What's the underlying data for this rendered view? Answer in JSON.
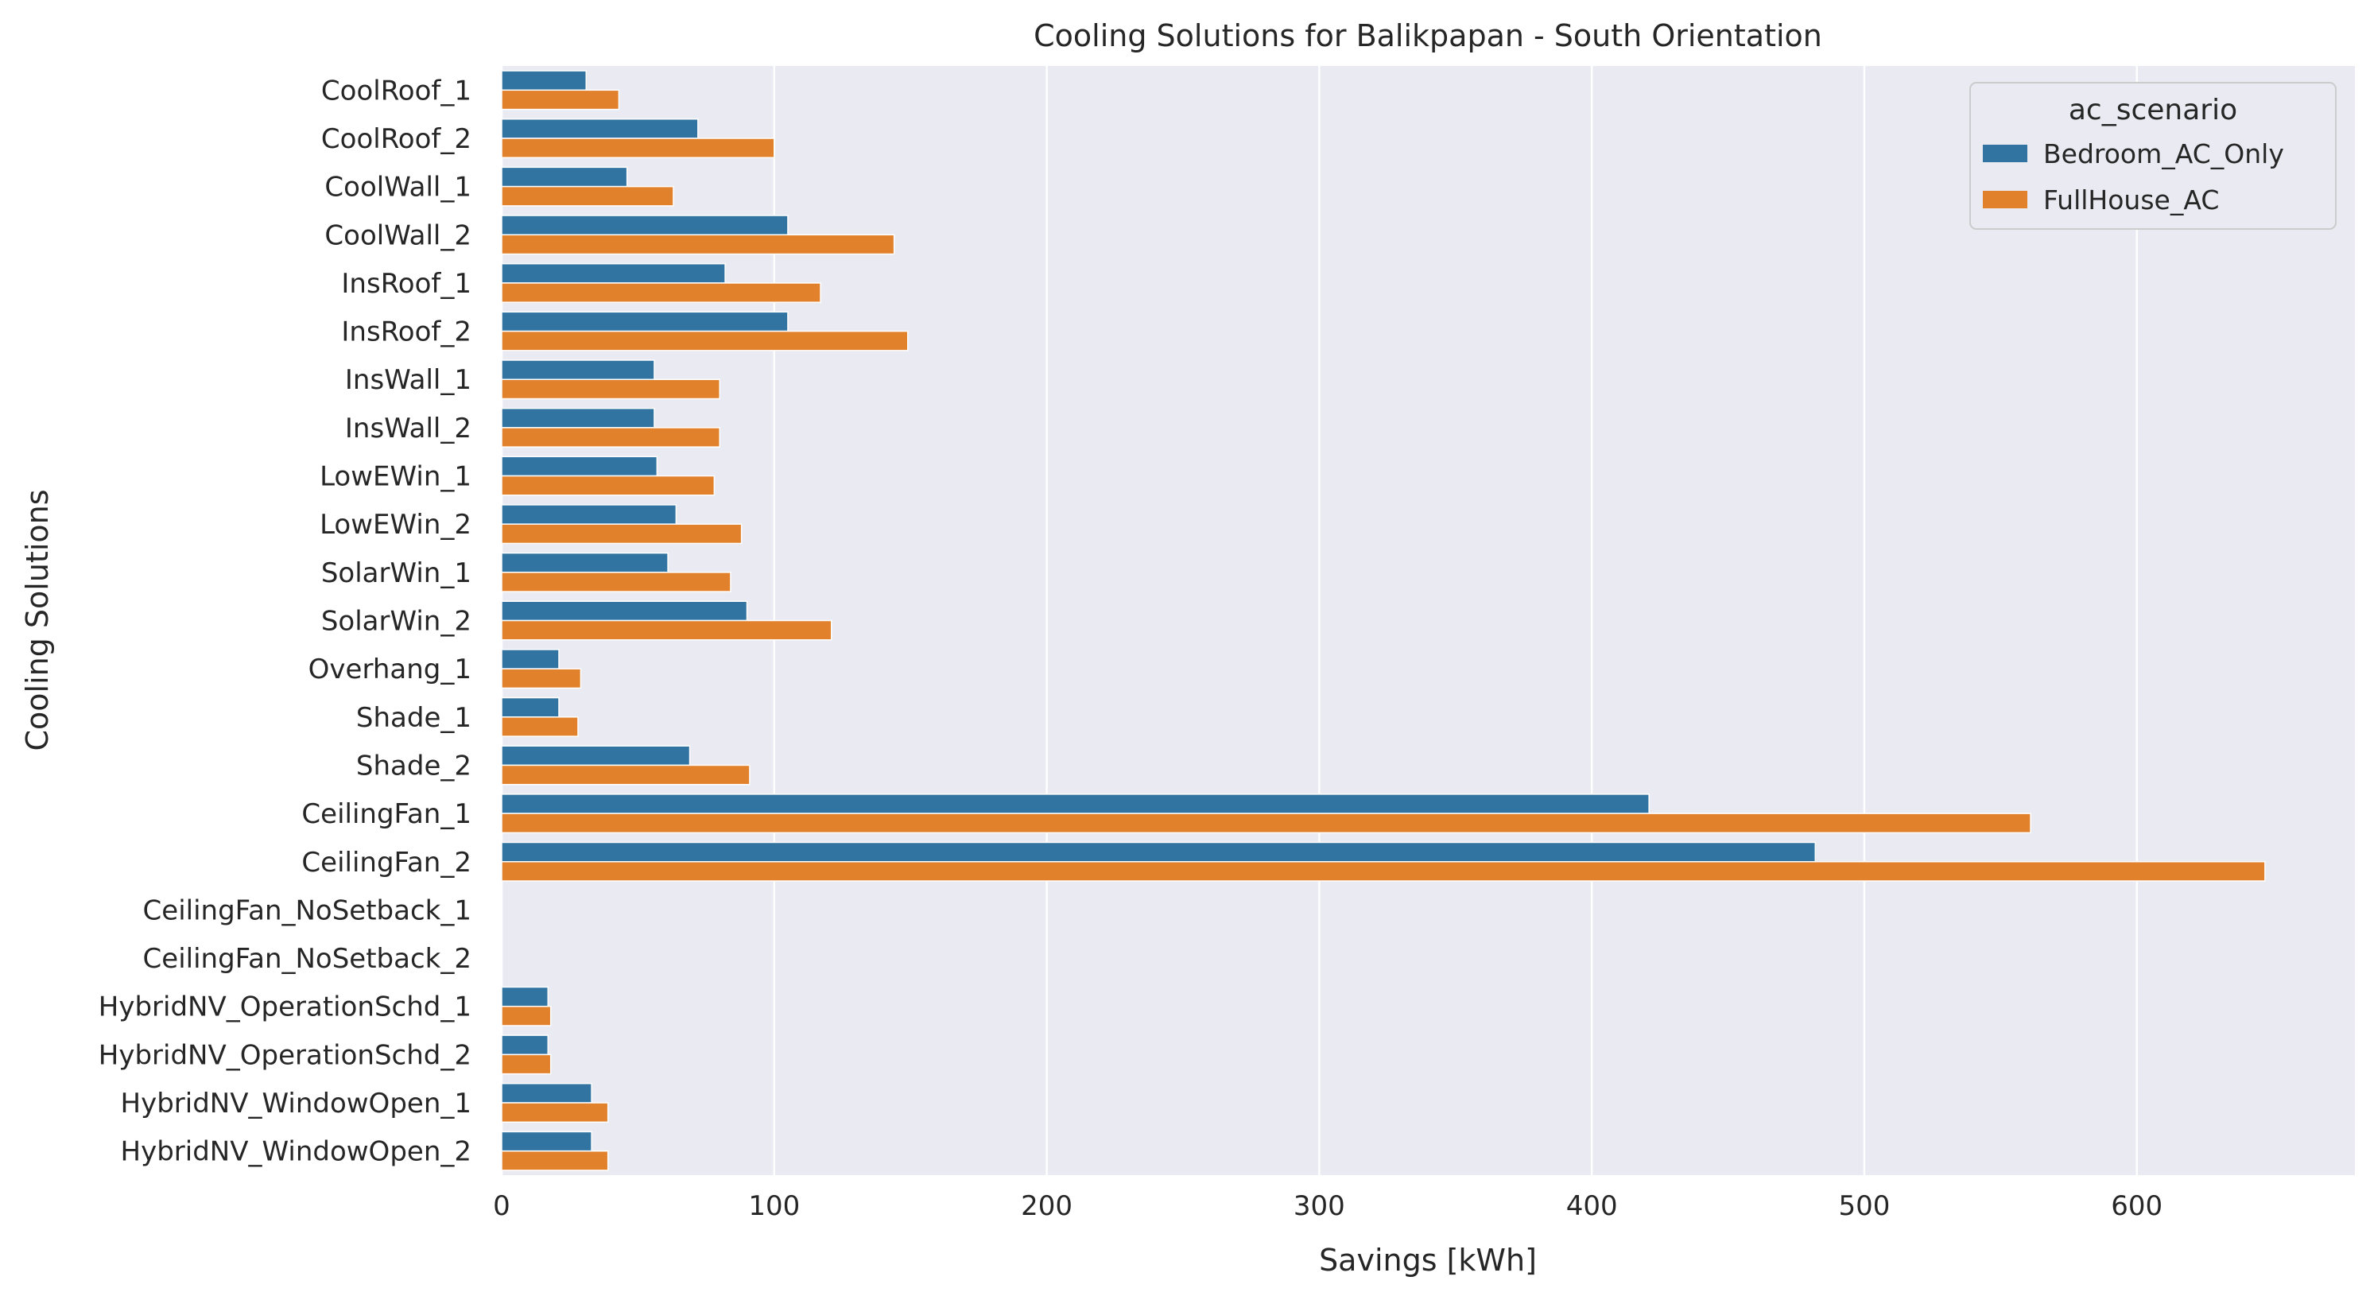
{
  "chart_data": {
    "type": "bar",
    "orientation": "horizontal",
    "title": "Cooling Solutions for Balikpapan - South Orientation",
    "xlabel": "Savings [kWh]",
    "ylabel": "Cooling Solutions",
    "xlim": [
      0,
      680
    ],
    "xticks": [
      0,
      100,
      200,
      300,
      400,
      500,
      600
    ],
    "grid": true,
    "legend": {
      "title": "ac_scenario",
      "placement": "top-right"
    },
    "categories": [
      "CoolRoof_1",
      "CoolRoof_2",
      "CoolWall_1",
      "CoolWall_2",
      "InsRoof_1",
      "InsRoof_2",
      "InsWall_1",
      "InsWall_2",
      "LowEWin_1",
      "LowEWin_2",
      "SolarWin_1",
      "SolarWin_2",
      "Overhang_1",
      "Shade_1",
      "Shade_2",
      "CeilingFan_1",
      "CeilingFan_2",
      "CeilingFan_NoSetback_1",
      "CeilingFan_NoSetback_2",
      "HybridNV_OperationSchd_1",
      "HybridNV_OperationSchd_2",
      "HybridNV_WindowOpen_1",
      "HybridNV_WindowOpen_2"
    ],
    "series": [
      {
        "name": "Bedroom_AC_Only",
        "color": "#3274a1",
        "values": [
          31,
          72,
          46,
          105,
          82,
          105,
          56,
          56,
          57,
          64,
          61,
          90,
          21,
          21,
          69,
          421,
          482,
          0,
          0,
          17,
          17,
          33,
          33
        ]
      },
      {
        "name": "FullHouse_AC",
        "color": "#e1812c",
        "values": [
          43,
          100,
          63,
          144,
          117,
          149,
          80,
          80,
          78,
          88,
          84,
          121,
          29,
          28,
          91,
          561,
          647,
          0,
          0,
          18,
          18,
          39,
          39
        ]
      }
    ]
  }
}
